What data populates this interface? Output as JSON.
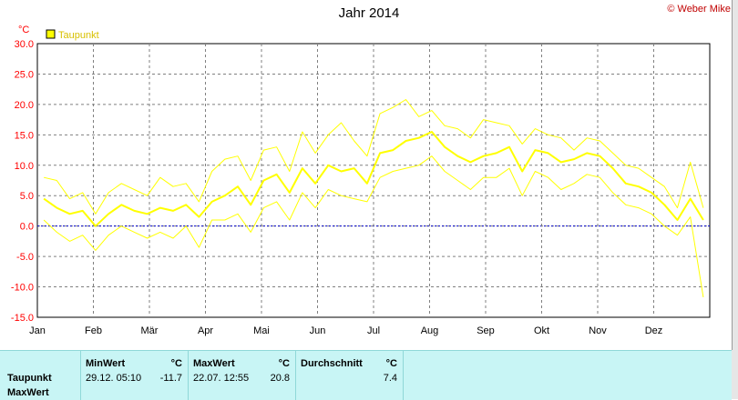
{
  "header": {
    "title": "Jahr 2014",
    "copyright": "© Weber Mike"
  },
  "footer": {
    "row_labels": [
      "Taupunkt",
      "MaxWert"
    ],
    "min": {
      "title": "MinWert",
      "unit": "°C",
      "datetime": "29.12.  05:10",
      "value": "-11.7"
    },
    "max": {
      "title": "MaxWert",
      "unit": "°C",
      "datetime": "22.07.  12:55",
      "value": "20.8"
    },
    "avg": {
      "title": "Durchschnitt",
      "unit": "°C",
      "value": "7.4"
    }
  },
  "colors": {
    "series": "#ffff00",
    "zero_line": "#0000cc",
    "grid": "#808080",
    "axis_label": "#ff0000"
  },
  "chart_data": {
    "type": "line",
    "title": "Jahr 2014",
    "ylabel": "°C",
    "ylim": [
      -15,
      30
    ],
    "yticks": [
      "30.0",
      "25.0",
      "20.0",
      "15.0",
      "10.0",
      "5.0",
      "0.0",
      "-5.0",
      "-10.0",
      "-15.0"
    ],
    "xticks": [
      "Jan",
      "Feb",
      "Mär",
      "Apr",
      "Mai",
      "Jun",
      "Jul",
      "Aug",
      "Sep",
      "Okt",
      "Nov",
      "Dez"
    ],
    "grid": true,
    "legend": "top-left",
    "series": [
      {
        "name": "Taupunkt",
        "note": "approximate weekly mid values",
        "x_weeks": [
          1,
          2,
          3,
          4,
          5,
          6,
          7,
          8,
          9,
          10,
          11,
          12,
          13,
          14,
          15,
          16,
          17,
          18,
          19,
          20,
          21,
          22,
          23,
          24,
          25,
          26,
          27,
          28,
          29,
          30,
          31,
          32,
          33,
          34,
          35,
          36,
          37,
          38,
          39,
          40,
          41,
          42,
          43,
          44,
          45,
          46,
          47,
          48,
          49,
          50,
          51,
          52
        ],
        "values": [
          4.5,
          3.0,
          2.0,
          2.5,
          0.0,
          2.0,
          3.5,
          2.5,
          2.0,
          3.0,
          2.5,
          3.5,
          1.5,
          4.0,
          5.0,
          6.5,
          3.5,
          7.5,
          8.5,
          5.5,
          9.5,
          7.0,
          10.0,
          9.0,
          9.5,
          7.0,
          12.0,
          12.5,
          14.0,
          14.5,
          15.5,
          13.0,
          11.5,
          10.5,
          11.5,
          12.0,
          13.0,
          9.0,
          12.5,
          12.0,
          10.5,
          11.0,
          12.0,
          11.5,
          9.5,
          7.0,
          6.5,
          5.5,
          3.5,
          1.0,
          4.5,
          1.0
        ]
      },
      {
        "name": "MaxWert",
        "note": "approximate weekly max values",
        "x_weeks": [
          1,
          2,
          3,
          4,
          5,
          6,
          7,
          8,
          9,
          10,
          11,
          12,
          13,
          14,
          15,
          16,
          17,
          18,
          19,
          20,
          21,
          22,
          23,
          24,
          25,
          26,
          27,
          28,
          29,
          30,
          31,
          32,
          33,
          34,
          35,
          36,
          37,
          38,
          39,
          40,
          41,
          42,
          43,
          44,
          45,
          46,
          47,
          48,
          49,
          50,
          51,
          52
        ],
        "values": [
          8.0,
          7.5,
          4.5,
          5.5,
          2.0,
          5.5,
          7.0,
          6.0,
          5.0,
          8.0,
          6.5,
          7.0,
          4.0,
          9.0,
          11.0,
          11.5,
          7.5,
          12.5,
          13.0,
          9.0,
          15.5,
          12.0,
          15.0,
          17.0,
          14.0,
          11.5,
          18.5,
          19.5,
          20.8,
          18.0,
          19.0,
          16.5,
          16.0,
          14.5,
          17.5,
          17.0,
          16.5,
          13.5,
          16.0,
          15.0,
          14.5,
          12.5,
          14.5,
          14.0,
          12.0,
          10.0,
          9.5,
          8.0,
          6.5,
          3.0,
          10.5,
          3.0
        ]
      },
      {
        "name": "MinWert",
        "note": "approximate weekly min values",
        "x_weeks": [
          1,
          2,
          3,
          4,
          5,
          6,
          7,
          8,
          9,
          10,
          11,
          12,
          13,
          14,
          15,
          16,
          17,
          18,
          19,
          20,
          21,
          22,
          23,
          24,
          25,
          26,
          27,
          28,
          29,
          30,
          31,
          32,
          33,
          34,
          35,
          36,
          37,
          38,
          39,
          40,
          41,
          42,
          43,
          44,
          45,
          46,
          47,
          48,
          49,
          50,
          51,
          52
        ],
        "values": [
          1.0,
          -1.0,
          -2.5,
          -1.5,
          -4.0,
          -1.5,
          0.0,
          -1.0,
          -2.0,
          -1.0,
          -2.0,
          0.0,
          -3.5,
          1.0,
          1.0,
          2.0,
          -1.0,
          3.0,
          4.0,
          1.0,
          5.5,
          3.0,
          6.0,
          5.0,
          4.5,
          4.0,
          8.0,
          9.0,
          9.5,
          10.0,
          11.5,
          9.0,
          7.5,
          6.0,
          8.0,
          8.0,
          9.5,
          5.0,
          9.0,
          8.0,
          6.0,
          7.0,
          8.5,
          8.0,
          5.5,
          3.5,
          3.0,
          2.0,
          0.0,
          -1.5,
          1.5,
          -11.7
        ]
      }
    ]
  }
}
